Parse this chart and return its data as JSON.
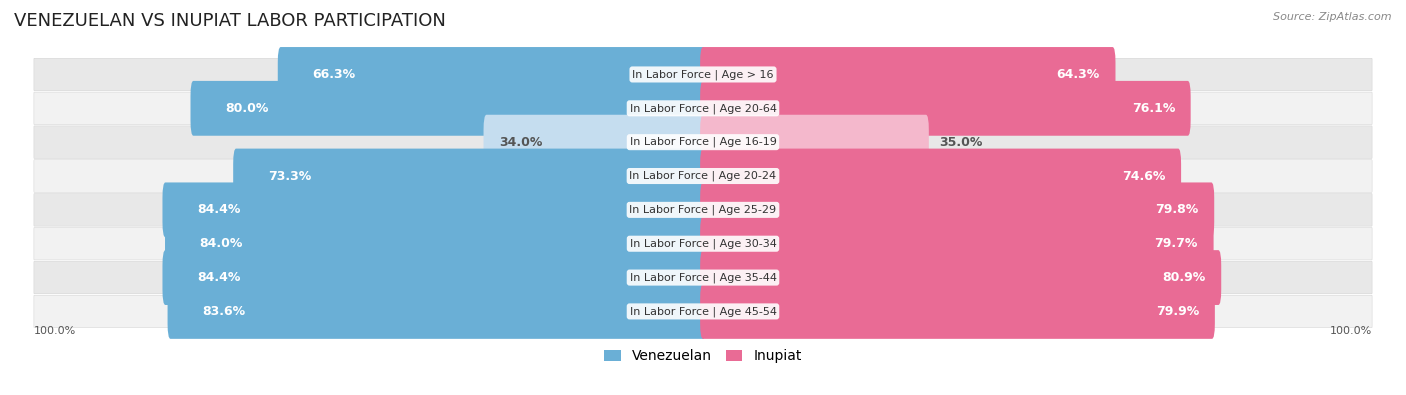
{
  "title": "VENEZUELAN VS INUPIAT LABOR PARTICIPATION",
  "source": "Source: ZipAtlas.com",
  "categories": [
    "In Labor Force | Age > 16",
    "In Labor Force | Age 20-64",
    "In Labor Force | Age 16-19",
    "In Labor Force | Age 20-24",
    "In Labor Force | Age 25-29",
    "In Labor Force | Age 30-34",
    "In Labor Force | Age 35-44",
    "In Labor Force | Age 45-54"
  ],
  "venezuelan_values": [
    66.3,
    80.0,
    34.0,
    73.3,
    84.4,
    84.0,
    84.4,
    83.6
  ],
  "inupiat_values": [
    64.3,
    76.1,
    35.0,
    74.6,
    79.8,
    79.7,
    80.9,
    79.9
  ],
  "venezuelan_color": "#6aafd6",
  "venezuelan_light_color": "#c5ddef",
  "inupiat_color": "#e96b95",
  "inupiat_light_color": "#f4b8cc",
  "row_bg_odd": "#e8e8e8",
  "row_bg_even": "#f2f2f2",
  "max_value": 100.0,
  "label_fontsize": 9,
  "title_fontsize": 13,
  "source_fontsize": 8,
  "legend_fontsize": 10,
  "cat_fontsize": 8
}
